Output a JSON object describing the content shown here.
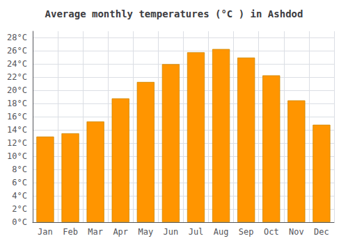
{
  "chart_data": {
    "type": "bar",
    "title": "Average monthly temperatures (°C ) in Ashdod",
    "categories": [
      "Jan",
      "Feb",
      "Mar",
      "Apr",
      "May",
      "Jun",
      "Jul",
      "Aug",
      "Sep",
      "Oct",
      "Nov",
      "Dec"
    ],
    "values": [
      13.0,
      13.5,
      15.3,
      18.8,
      21.3,
      24.0,
      25.8,
      26.3,
      25.0,
      22.3,
      18.5,
      14.8
    ],
    "color": "#FF9500",
    "ylim": [
      0,
      29
    ],
    "yticks": [
      {
        "value": 0,
        "label": "0°C"
      },
      {
        "value": 2,
        "label": "2°C"
      },
      {
        "value": 4,
        "label": "4°C"
      },
      {
        "value": 6,
        "label": "6°C"
      },
      {
        "value": 8,
        "label": "8°C"
      },
      {
        "value": 10,
        "label": "10°C"
      },
      {
        "value": 12,
        "label": "12°C"
      },
      {
        "value": 14,
        "label": "14°C"
      },
      {
        "value": 16,
        "label": "16°C"
      },
      {
        "value": 18,
        "label": "18°C"
      },
      {
        "value": 20,
        "label": "20°C"
      },
      {
        "value": 22,
        "label": "22°C"
      },
      {
        "value": 24,
        "label": "24°C"
      },
      {
        "value": 26,
        "label": "26°C"
      },
      {
        "value": 28,
        "label": "28°C"
      }
    ],
    "grid": true
  }
}
